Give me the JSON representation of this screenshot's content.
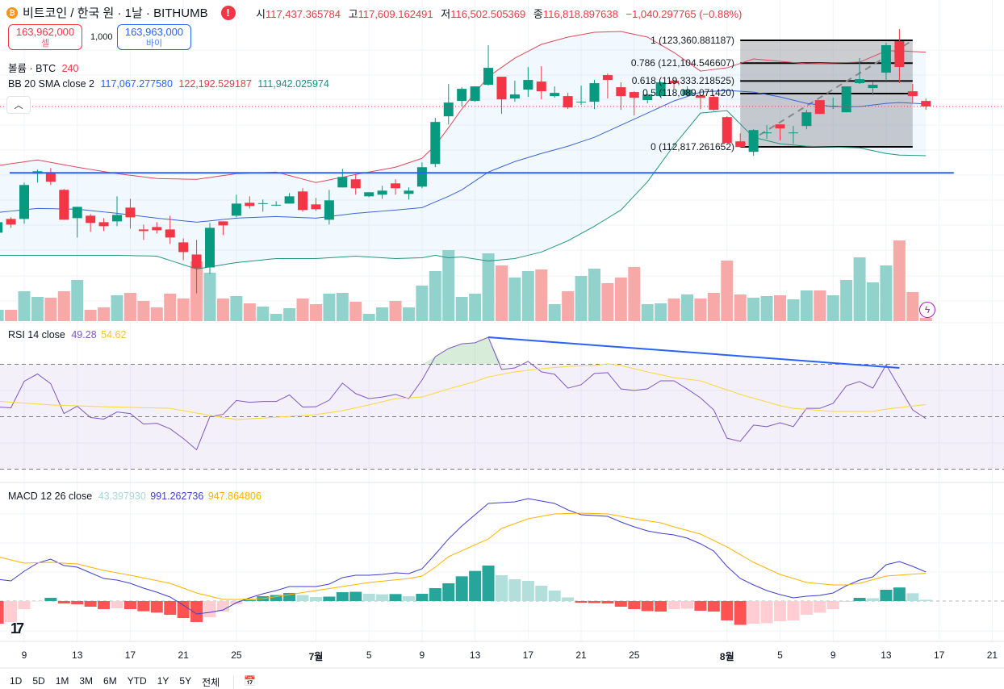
{
  "header": {
    "title": "비트코인 / 한국 원 · 1날 · BITHUMB",
    "logo_icon": "bitcoin-icon",
    "warning_icon": "exclamation-icon",
    "ohlc": {
      "open_label": "시",
      "open": "117,437.365784",
      "high_label": "고",
      "high": "117,609.162491",
      "low_label": "저",
      "low": "116,502.505369",
      "close_label": "종",
      "close": "116,818.897638",
      "change": "−1,040.297765 (−0.88%)"
    }
  },
  "trade": {
    "sell_price": "163,962,000",
    "sell_label": "셀",
    "quantity": "1,000",
    "buy_price": "163,963,000",
    "buy_label": "바이"
  },
  "legends": {
    "volume_label": "볼륨 · BTC",
    "volume_value": "240",
    "bb_label": "BB 20 SMA close 2",
    "bb_basis": "117,067.277580",
    "bb_upper": "122,192.529187",
    "bb_lower": "111,942.025974",
    "rsi_label": "RSI 14 close",
    "rsi_value": "49.28",
    "rsi_ma": "54.62",
    "macd_label": "MACD 12 26 close",
    "macd_hist": "43.397930",
    "macd_value": "991.262736",
    "macd_signal": "947.864806"
  },
  "fib_labels": [
    "1 (123,360.881187)",
    "0.786 (121,104.546607)",
    "0.618 (119,333.218525)",
    "0.5 (118,089.071420)",
    "0 (112,817.261652)"
  ],
  "x_axis": [
    "9",
    "13",
    "17",
    "21",
    "25",
    "7월",
    "5",
    "9",
    "13",
    "17",
    "21",
    "25",
    "8월",
    "5",
    "9",
    "13",
    "17",
    "21"
  ],
  "toolbar": [
    "1D",
    "5D",
    "1M",
    "3M",
    "6M",
    "YTD",
    "1Y",
    "5Y",
    "전체"
  ],
  "colors": {
    "up": "#089981",
    "down": "#f23645",
    "vol_up": "#92d2cc",
    "vol_down": "#f7a9a7",
    "bb_upper": "#e0485a",
    "bb_basis": "#3a64d8",
    "bb_lower": "#22957f",
    "rsi": "#7e57c2",
    "rsi_ma": "#fdd835",
    "macd": "#3f3fd0",
    "signal": "#ffb300",
    "trendline": "#2962ff"
  },
  "chart_data": {
    "type": "candlestick",
    "ohlc": [
      [
        104321,
        105361,
        104321,
        105361
      ],
      [
        105681,
        105841,
        104801,
        105121
      ],
      [
        105681,
        109281,
        105201,
        109041
      ],
      [
        110161,
        110561,
        109281,
        110401
      ],
      [
        110241,
        110721,
        109041,
        109361
      ],
      [
        108561,
        108641,
        105601,
        105601
      ],
      [
        105761,
        106881,
        103841,
        106881
      ],
      [
        106001,
        106161,
        104401,
        105281
      ],
      [
        105361,
        105761,
        104481,
        104961
      ],
      [
        105441,
        107921,
        104961,
        106081
      ],
      [
        106801,
        107681,
        104721,
        105841
      ],
      [
        104641,
        105121,
        103601,
        104481
      ],
      [
        104881,
        105361,
        104241,
        104561
      ],
      [
        104641,
        106001,
        103201,
        103841
      ],
      [
        103361,
        103761,
        101601,
        102401
      ],
      [
        102161,
        103601,
        98321,
        100801
      ],
      [
        100881,
        105281,
        100241,
        104801
      ],
      [
        105441,
        105441,
        104081,
        105041
      ],
      [
        106001,
        108081,
        105841,
        107201
      ],
      [
        107281,
        107921,
        106721,
        106961
      ],
      [
        107201,
        107601,
        106401,
        107241
      ],
      [
        107041,
        107441,
        106961,
        107081
      ],
      [
        107201,
        108241,
        107201,
        107921
      ],
      [
        108401,
        108721,
        106401,
        106561
      ],
      [
        107121,
        107761,
        106481,
        106641
      ],
      [
        105601,
        108561,
        105121,
        107521
      ],
      [
        108801,
        110641,
        108801,
        109841
      ],
      [
        109601,
        110081,
        108081,
        108721
      ],
      [
        107921,
        108321,
        107841,
        108321
      ],
      [
        108081,
        108961,
        107681,
        108481
      ],
      [
        109201,
        109601,
        108081,
        108721
      ],
      [
        108161,
        108801,
        107601,
        108481
      ],
      [
        108881,
        111281,
        108721,
        110801
      ],
      [
        111121,
        115681,
        110801,
        115281
      ],
      [
        115841,
        119041,
        115041,
        117201
      ],
      [
        117361,
        118721,
        116801,
        118561
      ],
      [
        117361,
        118801,
        117281,
        118801
      ],
      [
        118961,
        122881,
        118881,
        120641
      ],
      [
        119761,
        119761,
        116081,
        117521
      ],
      [
        117601,
        119361,
        117281,
        118001
      ],
      [
        118481,
        120721,
        117761,
        119441
      ],
      [
        119281,
        120801,
        117521,
        118321
      ],
      [
        117841,
        118801,
        117681,
        118161
      ],
      [
        117841,
        118161,
        116561,
        116721
      ],
      [
        117201,
        118881,
        116961,
        117281
      ],
      [
        117281,
        119441,
        116561,
        119121
      ],
      [
        119921,
        120081,
        117601,
        119441
      ],
      [
        118721,
        119201,
        116481,
        117841
      ],
      [
        118241,
        118321,
        115921,
        117681
      ],
      [
        117441,
        118081,
        117121,
        118001
      ],
      [
        117841,
        119281,
        117761,
        119201
      ],
      [
        119361,
        119441,
        118561,
        119121
      ],
      [
        117921,
        118801,
        117761,
        118481
      ],
      [
        117921,
        118001,
        116561,
        117681
      ],
      [
        117761,
        118001,
        116401,
        116481
      ],
      [
        115761,
        115841,
        113201,
        113201
      ],
      [
        113361,
        114161,
        112801,
        112801
      ],
      [
        112321,
        114561,
        111921,
        114481
      ],
      [
        114161,
        114961,
        113601,
        114241
      ],
      [
        115041,
        115041,
        113441,
        114641
      ],
      [
        114161,
        114881,
        113121,
        114241
      ],
      [
        114881,
        116481,
        114561,
        116241
      ],
      [
        117441,
        117441,
        116081,
        116081
      ],
      [
        116801,
        117681,
        116561,
        116881
      ],
      [
        116241,
        118801,
        116241,
        118801
      ],
      [
        119121,
        121601,
        119041,
        119521
      ],
      [
        118641,
        119281,
        117921,
        118961
      ],
      [
        120161,
        123121,
        119361,
        122881
      ],
      [
        123281,
        124481,
        119121,
        120721
      ],
      [
        118321,
        119041,
        117201,
        117841
      ],
      [
        117361,
        117601,
        116481,
        116819
      ]
    ],
    "volume": [
      840,
      840,
      2220,
      1800,
      1740,
      2220,
      3060,
      840,
      1020,
      1920,
      2100,
      1500,
      1020,
      2040,
      1680,
      4440,
      3600,
      1680,
      1860,
      1320,
      1080,
      540,
      960,
      1680,
      1260,
      2040,
      2100,
      1440,
      540,
      1020,
      1500,
      1020,
      2640,
      3720,
      5280,
      1800,
      2040,
      5040,
      4140,
      3240,
      3720,
      3840,
      1260,
      2220,
      3360,
      3900,
      2820,
      3240,
      4020,
      1260,
      1320,
      1680,
      1980,
      1680,
      2100,
      4500,
      1980,
      1740,
      1860,
      1920,
      1620,
      2280,
      2280,
      1920,
      3060,
      4740,
      2880,
      4140,
      6000,
      2160,
      240
    ],
    "bollinger": {
      "sample_index": [
        1,
        4,
        7,
        10,
        13,
        16,
        19,
        22,
        25,
        28,
        31,
        33,
        34,
        35,
        36,
        38,
        40,
        42,
        44,
        46,
        48,
        50,
        52,
        54,
        56,
        58,
        60,
        62,
        64,
        66,
        68,
        69,
        71
      ],
      "upper": [
        110961,
        111521,
        110801,
        110161,
        109681,
        109601,
        110161,
        110321,
        109281,
        110081,
        110801,
        111681,
        112961,
        114721,
        116561,
        119761,
        121601,
        122961,
        123681,
        124161,
        124241,
        123681,
        122161,
        120321,
        120641,
        121521,
        121281,
        121041,
        121121,
        121201,
        122321,
        122321,
        122193
      ],
      "basis": [
        106321,
        106721,
        106641,
        106241,
        105761,
        105361,
        105761,
        105921,
        105761,
        106241,
        106561,
        106801,
        107361,
        107921,
        108561,
        110321,
        111361,
        112161,
        112881,
        113761,
        114961,
        116161,
        117361,
        118241,
        118401,
        118241,
        117761,
        117121,
        116801,
        116801,
        117121,
        117201,
        117067
      ],
      "lower": [
        102081,
        102081,
        102081,
        102081,
        102001,
        100721,
        101361,
        101761,
        101761,
        102001,
        101761,
        101841,
        102081,
        101841,
        101921,
        101521,
        101761,
        102401,
        103521,
        104961,
        106561,
        109361,
        112961,
        116161,
        116401,
        113761,
        113121,
        112881,
        112801,
        112721,
        112161,
        112001,
        111942
      ]
    },
    "support_line": {
      "price": 110241,
      "from_index": 1.9,
      "to_index": 73.1
    },
    "last_price": 116818.897638,
    "fibonacci": {
      "from_index": 57,
      "to_index": 70,
      "levels": [
        1,
        0.786,
        0.618,
        0.5,
        0
      ],
      "prices": [
        123360.881187,
        121104.546607,
        119333.218525,
        118089.07142,
        112817.261652
      ]
    },
    "rsi": {
      "values": [
        53.7,
        53.4,
        63.5,
        66.3,
        62.6,
        51.2,
        54.0,
        49.7,
        49.1,
        51.8,
        51.2,
        47.2,
        47.5,
        45.4,
        41.7,
        37.4,
        50.0,
        50.9,
        56.2,
        55.5,
        55.8,
        55.8,
        58.3,
        53.7,
        53.8,
        56.3,
        62.8,
        58.8,
        56.9,
        57.5,
        58.5,
        56.9,
        64.0,
        72.9,
        76.0,
        77.8,
        78.2,
        80.3,
        68.0,
        68.6,
        71.1,
        67.1,
        66.2,
        60.9,
        62.2,
        66.5,
        66.8,
        60.6,
        60.0,
        60.6,
        63.7,
        63.7,
        60.6,
        57.2,
        52.6,
        41.8,
        40.6,
        46.8,
        46.2,
        47.7,
        46.2,
        53.2,
        53.2,
        55.1,
        61.8,
        63.4,
        60.9,
        69.8,
        61.2,
        52.6,
        49.28
      ],
      "ma_index": [
        1,
        5,
        9,
        14,
        17,
        19,
        22,
        25,
        27,
        29,
        31,
        33,
        35,
        37,
        38,
        40,
        42,
        44,
        46,
        47,
        48,
        50,
        52,
        54,
        57,
        60,
        61,
        64,
        67,
        68,
        71
      ],
      "ma_values": [
        55.9,
        54.5,
        53.8,
        53.2,
        50.5,
        48.9,
        49.8,
        50.8,
        52.3,
        54.5,
        56.9,
        57.5,
        60.6,
        63.4,
        65.2,
        67.1,
        68.3,
        69.2,
        69.5,
        70.2,
        69.5,
        67.1,
        64.9,
        63.7,
        58.5,
        54.2,
        53.2,
        52.0,
        52.0,
        52.9,
        54.62
      ],
      "levels": [
        70,
        50,
        30
      ],
      "divergence_line": {
        "from_index": 38,
        "from_value": 80.3,
        "to_index": 69,
        "to_value": 68.6
      }
    },
    "macd": {
      "values": [
        742,
        688,
        1018,
        1293,
        1430,
        1210,
        1155,
        963,
        770,
        715,
        605,
        440,
        303,
        138,
        -138,
        -440,
        -385,
        -303,
        -55,
        110,
        248,
        358,
        495,
        495,
        495,
        578,
        798,
        880,
        880,
        908,
        963,
        935,
        1100,
        1595,
        2118,
        2558,
        2943,
        3328,
        3355,
        3383,
        3493,
        3410,
        3328,
        3108,
        2943,
        2915,
        2888,
        2695,
        2530,
        2393,
        2310,
        2255,
        2145,
        1953,
        1705,
        1183,
        770,
        550,
        358,
        220,
        110,
        165,
        193,
        275,
        523,
        715,
        825,
        1238,
        1348,
        1183,
        991.26
      ],
      "signal_index": [
        1,
        3,
        5,
        7,
        9,
        11,
        14,
        16,
        18,
        19,
        21,
        23,
        25,
        27,
        29,
        32,
        33,
        34,
        35,
        38,
        39,
        41,
        43,
        45,
        47,
        49,
        51,
        52,
        54,
        56,
        58,
        60,
        62,
        64,
        65,
        66,
        68,
        71
      ],
      "signal_values": [
        1513,
        1293,
        1320,
        1265,
        1045,
        880,
        605,
        275,
        55,
        55,
        83,
        220,
        358,
        495,
        633,
        770,
        853,
        1155,
        1513,
        2118,
        2475,
        2805,
        2970,
        2998,
        2970,
        2805,
        2668,
        2530,
        2283,
        1843,
        1320,
        908,
        633,
        550,
        550,
        605,
        853,
        947.86
      ]
    }
  }
}
